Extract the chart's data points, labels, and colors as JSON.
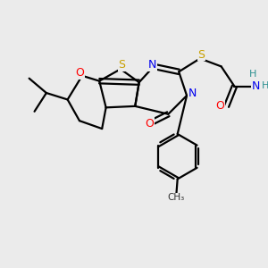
{
  "bg_color": "#ebebeb",
  "atom_colors": {
    "S": "#c8a000",
    "O": "#ff0000",
    "N": "#0000ee",
    "C": "#000000",
    "H": "#2a9090"
  },
  "bond_color": "#000000",
  "bond_width": 1.6,
  "fig_bg": "#ebebeb"
}
